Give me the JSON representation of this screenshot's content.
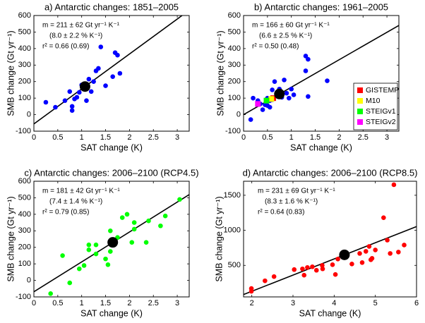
{
  "chart_data": [
    {
      "type": "scatter",
      "title": "a) Antarctic changes: 1851–2005",
      "xlabel": "SAT change (K)",
      "ylabel": "SMB change (Gt yr⁻¹)",
      "annotations": [
        "m = 211 ± 62 Gt yr⁻¹ K⁻¹",
        "(8.0 ± 2.2 % K⁻¹)",
        "r² = 0.66 (0.69)"
      ],
      "xlim": [
        0,
        3.25
      ],
      "ylim": [
        -100,
        600
      ],
      "xticks": [
        0,
        0.5,
        1,
        1.5,
        2,
        2.5,
        3
      ],
      "yticks": [
        -100,
        0,
        100,
        200,
        300,
        400,
        500,
        600
      ],
      "series": [
        {
          "color": "#0000ff",
          "x": [
            0.25,
            0.45,
            0.65,
            0.75,
            0.8,
            0.8,
            0.85,
            0.9,
            0.95,
            1.0,
            1.1,
            1.15,
            1.2,
            1.25,
            1.3,
            1.35,
            1.4,
            1.5,
            1.65,
            1.7,
            1.75,
            1.8
          ],
          "y": [
            75,
            45,
            85,
            140,
            50,
            25,
            95,
            105,
            135,
            180,
            85,
            215,
            140,
            200,
            265,
            280,
            410,
            175,
            230,
            375,
            360,
            250
          ]
        }
      ],
      "mean": {
        "color": "#000000",
        "x": 1.07,
        "y": 170
      },
      "fit": {
        "color": "#000000",
        "x": [
          0,
          3.1
        ],
        "y": [
          -56,
          600
        ]
      }
    },
    {
      "type": "scatter",
      "title": "b) Antarctic changes: 1961–2005",
      "xlabel": "SAT change (K)",
      "ylabel": "SMB change (Gt yr⁻¹)",
      "annotations": [
        "m = 166 ± 60 Gt yr⁻¹ K⁻¹",
        "(6.6 ± 2.5 % K⁻¹)",
        "r² = 0.50 (0.48)"
      ],
      "xlim": [
        0,
        3.25
      ],
      "ylim": [
        -100,
        600
      ],
      "xticks": [
        0,
        0.5,
        1,
        1.5,
        2,
        2.5,
        3
      ],
      "yticks": [
        -100,
        0,
        100,
        200,
        300,
        400,
        500,
        600
      ],
      "series": [
        {
          "color": "#0000ff",
          "x": [
            0.15,
            0.2,
            0.3,
            0.35,
            0.4,
            0.45,
            0.5,
            0.55,
            0.6,
            0.6,
            0.65,
            0.7,
            0.75,
            0.8,
            0.85,
            0.9,
            0.95,
            1.0,
            1.05,
            1.3,
            1.3,
            1.35,
            1.35,
            1.75,
            0.55,
            0.5
          ],
          "y": [
            -30,
            100,
            85,
            65,
            30,
            60,
            100,
            45,
            150,
            90,
            200,
            120,
            155,
            105,
            210,
            130,
            100,
            155,
            120,
            265,
            355,
            335,
            110,
            205,
            85,
            55
          ]
        },
        {
          "name": "GISTEMP",
          "marker": "square",
          "color": "#ff0000",
          "x": [
            0.62
          ],
          "y": [
            100
          ]
        },
        {
          "name": "M10",
          "marker": "square",
          "color": "#ffff00",
          "x": [
            0.58
          ],
          "y": [
            95
          ]
        },
        {
          "name": "STEIGv1",
          "marker": "square",
          "color": "#00ff00",
          "x": [
            0.48
          ],
          "y": [
            85
          ]
        },
        {
          "name": "STEIGv2",
          "marker": "square",
          "color": "#ff00ff",
          "x": [
            0.3
          ],
          "y": [
            65
          ]
        }
      ],
      "legend": "lower right",
      "mean": {
        "color": "#000000",
        "x": 0.75,
        "y": 125
      },
      "fit": {
        "color": "#000000",
        "x": [
          0,
          3.25
        ],
        "y": [
          0,
          540
        ]
      }
    },
    {
      "type": "scatter",
      "title": "c) Antarctic changes: 2006–2100 (RCP4.5)",
      "xlabel": "SAT change (K)",
      "ylabel": "SMB change (Gt yr⁻¹)",
      "annotations": [
        "m = 181 ± 42 Gt yr⁻¹ K⁻¹",
        "(7.4 ± 1.4 % K⁻¹)",
        "r² = 0.79 (0.85)"
      ],
      "xlim": [
        0,
        3.25
      ],
      "ylim": [
        -100,
        600
      ],
      "xticks": [
        0,
        0.5,
        1,
        1.5,
        2,
        2.5,
        3
      ],
      "yticks": [
        -100,
        0,
        100,
        200,
        300,
        400,
        500,
        600
      ],
      "series": [
        {
          "color": "#00ff00",
          "x": [
            0.35,
            0.6,
            0.75,
            0.95,
            1.05,
            1.15,
            1.15,
            1.3,
            1.3,
            1.5,
            1.55,
            1.6,
            1.6,
            1.75,
            1.85,
            1.95,
            2.1,
            2.1,
            2.35,
            2.4,
            2.65,
            2.75,
            3.05,
            2.05
          ],
          "y": [
            -80,
            150,
            -15,
            70,
            90,
            215,
            185,
            215,
            160,
            130,
            95,
            300,
            175,
            260,
            380,
            400,
            350,
            310,
            230,
            360,
            330,
            390,
            490,
            230
          ]
        }
      ],
      "mean": {
        "color": "#000000",
        "x": 1.65,
        "y": 230
      },
      "fit": {
        "color": "#000000",
        "x": [
          0,
          3.25
        ],
        "y": [
          -69,
          519
        ]
      }
    },
    {
      "type": "scatter",
      "title": "d) Antarctic changes: 2006–2100 (RCP8.5)",
      "xlabel": "SAT change (K)",
      "ylabel": "SMB change (Gt yr⁻¹)",
      "annotations": [
        "m = 231 ± 69 Gt yr⁻¹ K⁻¹",
        "(8.3 ± 1.6 % K⁻¹)",
        "r² = 0.64 (0.83)"
      ],
      "xlim": [
        1.8,
        6
      ],
      "ylim": [
        50,
        1700
      ],
      "xticks": [
        2,
        3,
        4,
        5,
        6
      ],
      "yticks": [
        500,
        1000,
        1500
      ],
      "series": [
        {
          "color": "#ff0000",
          "x": [
            1.99,
            1.99,
            2.32,
            2.54,
            3.03,
            3.23,
            3.27,
            3.35,
            3.47,
            3.57,
            3.71,
            3.72,
            3.96,
            4.03,
            4.09,
            4.43,
            4.62,
            4.68,
            4.77,
            4.85,
            4.89,
            4.92,
            5.0,
            5.2,
            5.45,
            5.29,
            5.36,
            5.56,
            5.7
          ],
          "y": [
            130,
            170,
            280,
            340,
            440,
            450,
            360,
            470,
            480,
            430,
            500,
            450,
            510,
            370,
            590,
            520,
            670,
            540,
            700,
            770,
            580,
            600,
            720,
            1180,
            1650,
            860,
            670,
            690,
            790
          ]
        }
      ],
      "mean": {
        "color": "#000000",
        "x": 4.25,
        "y": 650
      },
      "fit": {
        "color": "#000000",
        "x": [
          1.8,
          6
        ],
        "y": [
          84,
          1054
        ]
      }
    }
  ]
}
